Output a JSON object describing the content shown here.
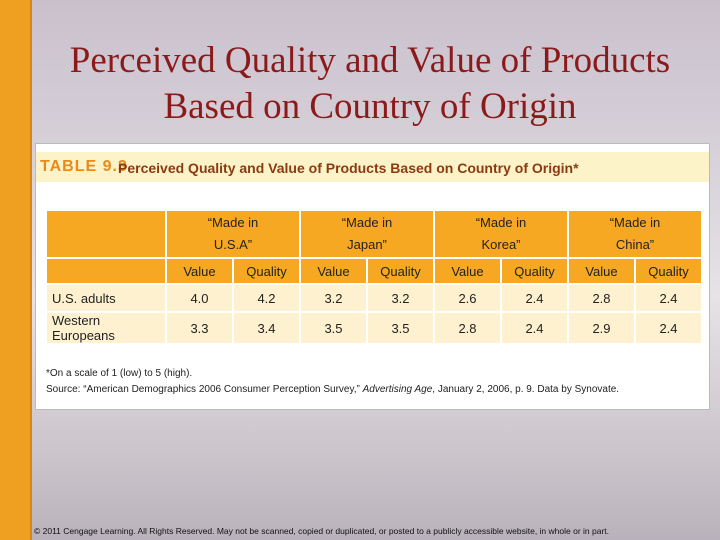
{
  "slide": {
    "title": "Perceived Quality and Value of Products Based on Country of Origin"
  },
  "table": {
    "label": "TABLE 9.3",
    "caption": "Perceived Quality and Value of Products Based on Country of Origin*",
    "groups": [
      "“Made in U.S.A”",
      "“Made in Japan”",
      "“Made in Korea”",
      "“Made in China”"
    ],
    "columns": [
      "Value",
      "Quality",
      "Value",
      "Quality",
      "Value",
      "Quality",
      "Value",
      "Quality"
    ],
    "rows": [
      [
        "U.S. adults",
        "4.0",
        "4.2",
        "3.2",
        "3.2",
        "2.6",
        "2.4",
        "2.8",
        "2.4"
      ],
      [
        "Western Europeans",
        "3.3",
        "3.4",
        "3.5",
        "3.5",
        "2.8",
        "2.4",
        "2.9",
        "2.4"
      ]
    ],
    "note": "*On a scale of 1 (low) to 5 (high).",
    "source": [
      "Source: “American Demographics 2006 Consumer Perception Survey,” ",
      "Advertising Age",
      ", January 2, 2006, p. 9. Data by Synovate."
    ]
  },
  "footer": "© 2011 Cengage Learning. All Rights Reserved. May not be scanned, copied or duplicated, or posted to a publicly accessible website, in whole or in part."
}
